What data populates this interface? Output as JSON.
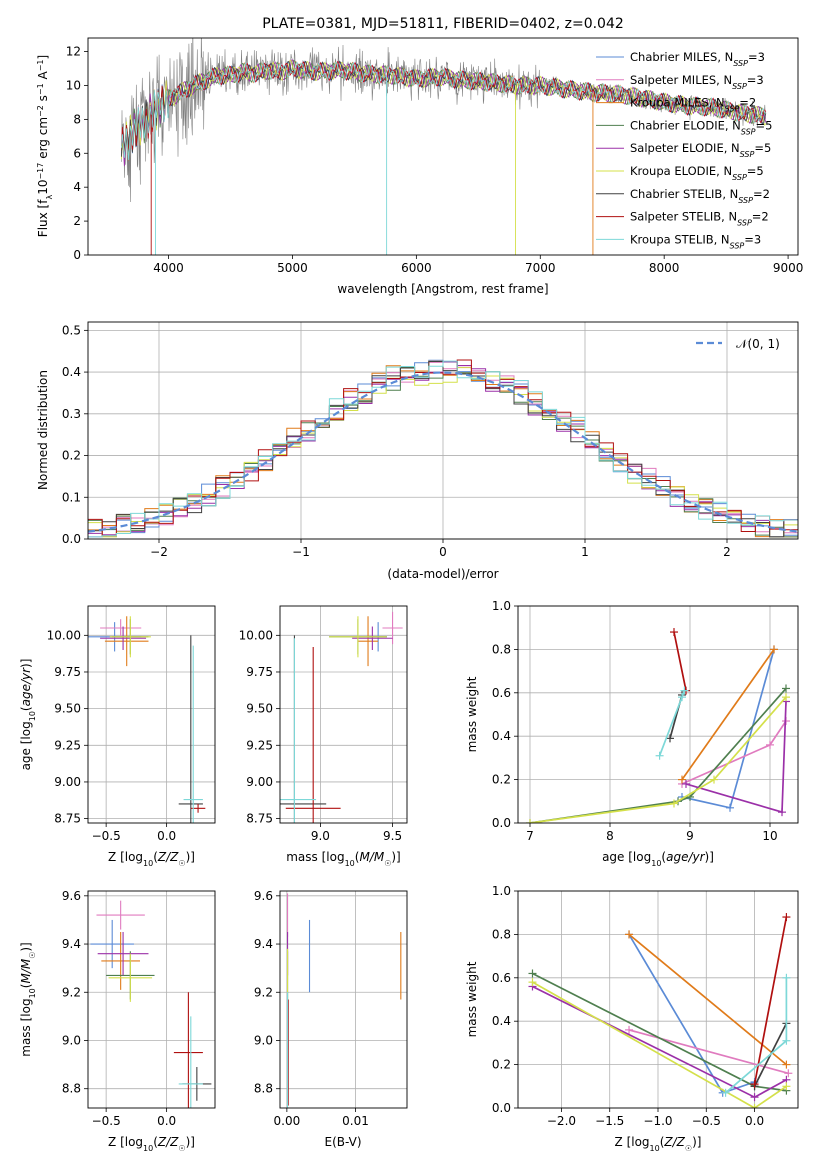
{
  "colors": {
    "chabrier_miles": "#5b8bd6",
    "salpeter_miles": "#e07bbf",
    "kroupa_miles": "#e07b1a",
    "chabrier_elodie": "#4f7f4f",
    "salpeter_elodie": "#9b30a8",
    "kroupa_elodie": "#d4e04a",
    "chabrier_stelib": "#404040",
    "salpeter_stelib": "#b01010",
    "kroupa_stelib": "#7dd8d8",
    "gaussian": "#5b8bd6",
    "grid": "#b0b0b0"
  },
  "chart_data": [
    {
      "id": "spectrum",
      "type": "line",
      "title": "PLATE=0381, MJD=51811, FIBERID=0402, z=0.042",
      "xlabel": "wavelength [Angstrom, rest frame]",
      "ylabel": "Flux [f_λ10^-17 erg cm^-2 s^-1 A^-1]",
      "xlim": [
        3350,
        9080
      ],
      "ylim": [
        0,
        12.8
      ],
      "xticks": [
        4000,
        5000,
        6000,
        7000,
        8000,
        9000
      ],
      "yticks": [
        0,
        2,
        4,
        6,
        8,
        10,
        12
      ],
      "grid": false,
      "legend_position": "right",
      "data_envelope": {
        "x": [
          3600,
          3650,
          3700,
          3800,
          3900,
          4000,
          4100,
          4200,
          4300,
          4400,
          4500,
          4600,
          4700,
          4800,
          4900,
          5000,
          5200,
          5400,
          5600,
          5800,
          6000,
          6200,
          6400,
          6600,
          6800,
          7000,
          7200,
          7400,
          7600,
          7800,
          8000,
          8200,
          8400,
          8600,
          8800
        ],
        "y": [
          5.8,
          6.6,
          7.2,
          7.8,
          8.6,
          9.2,
          9.6,
          10.0,
          10.3,
          10.6,
          10.6,
          10.8,
          10.7,
          10.9,
          10.8,
          11.0,
          10.8,
          10.9,
          10.7,
          10.6,
          10.4,
          10.5,
          10.3,
          10.2,
          10.0,
          10.0,
          9.8,
          9.6,
          9.5,
          9.3,
          9.0,
          8.8,
          8.7,
          8.4,
          8.2
        ]
      },
      "series": [
        {
          "name": "Chabrier MILES, N_SSP=3"
        },
        {
          "name": "Salpeter MILES, N_SSP=3"
        },
        {
          "name": "Kroupa MILES, N_SSP=2"
        },
        {
          "name": "Chabrier ELODIE, N_SSP=5"
        },
        {
          "name": "Salpeter ELODIE, N_SSP=5"
        },
        {
          "name": "Kroupa ELODIE, N_SSP=5"
        },
        {
          "name": "Chabrier STELIB, N_SSP=2"
        },
        {
          "name": "Salpeter STELIB, N_SSP=2"
        },
        {
          "name": "Kroupa STELIB, N_SSP=3"
        }
      ]
    },
    {
      "id": "residuals",
      "type": "line",
      "xlabel": "(data-model)/error",
      "ylabel": "Normed distribution",
      "xlim": [
        -2.5,
        2.5
      ],
      "ylim": [
        0,
        0.52
      ],
      "xticks": [
        -2,
        -1,
        0,
        1,
        2
      ],
      "yticks": [
        0.0,
        0.1,
        0.2,
        0.3,
        0.4,
        0.5
      ],
      "grid": true,
      "legend_position": "top-right",
      "legend": "𝒩(0, 1)",
      "reference_curve": "normal(0,1)"
    },
    {
      "id": "age_vs_Z",
      "type": "scatter",
      "xlabel": "Z [log10(Z/Z☉)]",
      "ylabel": "age [log10(age/yr)]",
      "xlim": [
        -0.65,
        0.4
      ],
      "ylim": [
        8.72,
        10.2
      ],
      "xticks": [
        -0.5,
        0.0
      ],
      "yticks": [
        8.75,
        9.0,
        9.25,
        9.5,
        9.75,
        10.0
      ],
      "grid": true,
      "points": [
        {
          "s": "chabrier_miles",
          "x": -0.43,
          "y": 9.99,
          "xerr": 0.22,
          "yerr": 0.1
        },
        {
          "s": "salpeter_miles",
          "x": -0.38,
          "y": 10.05,
          "xerr": 0.17,
          "yerr": 0.06
        },
        {
          "s": "kroupa_miles",
          "x": -0.33,
          "y": 9.96,
          "xerr": 0.18,
          "yerr": 0.17
        },
        {
          "s": "chabrier_elodie",
          "x": -0.3,
          "y": 9.99,
          "xerr": 0.15,
          "yerr": 0.12
        },
        {
          "s": "salpeter_elodie",
          "x": -0.36,
          "y": 9.98,
          "xerr": 0.19,
          "yerr": 0.08
        },
        {
          "s": "kroupa_elodie",
          "x": -0.3,
          "y": 9.99,
          "xerr": 0.17,
          "yerr": 0.14
        },
        {
          "s": "chabrier_stelib",
          "x": 0.2,
          "y": 8.85,
          "xerr": 0.1,
          "yerr": 1.15
        },
        {
          "s": "salpeter_stelib",
          "x": 0.26,
          "y": 8.82,
          "xerr": 0.06,
          "yerr": 0.03
        },
        {
          "s": "kroupa_stelib",
          "x": 0.22,
          "y": 8.88,
          "xerr": 0.08,
          "yerr": 1.05
        }
      ]
    },
    {
      "id": "age_vs_mass",
      "type": "scatter",
      "xlabel": "mass [log10(M/M☉)]",
      "ylabel": "",
      "xlim": [
        8.72,
        9.6
      ],
      "ylim": [
        8.72,
        10.2
      ],
      "xticks": [
        9.0,
        9.5
      ],
      "yticks": [
        8.75,
        9.0,
        9.25,
        9.5,
        9.75,
        10.0
      ],
      "grid": true,
      "points": [
        {
          "s": "chabrier_miles",
          "x": 9.4,
          "y": 9.99,
          "xerr": 0.06,
          "yerr": 0.1
        },
        {
          "s": "salpeter_miles",
          "x": 9.5,
          "y": 10.05,
          "xerr": 0.07,
          "yerr": 0.11
        },
        {
          "s": "kroupa_miles",
          "x": 9.33,
          "y": 9.96,
          "xerr": 0.07,
          "yerr": 0.17
        },
        {
          "s": "chabrier_elodie",
          "x": 9.26,
          "y": 9.99,
          "xerr": 0.2,
          "yerr": 0.12
        },
        {
          "s": "salpeter_elodie",
          "x": 9.36,
          "y": 9.98,
          "xerr": 0.14,
          "yerr": 0.08
        },
        {
          "s": "kroupa_elodie",
          "x": 9.26,
          "y": 9.99,
          "xerr": 0.2,
          "yerr": 0.14
        },
        {
          "s": "chabrier_stelib",
          "x": 8.82,
          "y": 8.85,
          "xerr": 0.22,
          "yerr": 1.15
        },
        {
          "s": "salpeter_stelib",
          "x": 8.95,
          "y": 8.82,
          "xerr": 0.19,
          "yerr": 1.1
        },
        {
          "s": "kroupa_stelib",
          "x": 8.82,
          "y": 8.88,
          "xerr": 0.15,
          "yerr": 1.1
        }
      ]
    },
    {
      "id": "mass_weight_vs_age",
      "type": "line",
      "xlabel": "age [log10(age/yr)]",
      "ylabel": "mass weight",
      "xlim": [
        6.85,
        10.35
      ],
      "ylim": [
        0,
        1.0
      ],
      "xticks": [
        7,
        8,
        9,
        10
      ],
      "yticks": [
        0.0,
        0.2,
        0.4,
        0.6,
        0.8,
        1.0
      ],
      "grid": true,
      "series": [
        {
          "s": "chabrier_miles",
          "x": [
            8.9,
            9.5,
            10.05
          ],
          "y": [
            0.12,
            0.07,
            0.8
          ]
        },
        {
          "s": "salpeter_miles",
          "x": [
            8.9,
            10.0,
            10.2
          ],
          "y": [
            0.18,
            0.36,
            0.47
          ]
        },
        {
          "s": "kroupa_miles",
          "x": [
            8.9,
            10.05
          ],
          "y": [
            0.2,
            0.8
          ]
        },
        {
          "s": "chabrier_elodie",
          "x": [
            7.0,
            8.85,
            9.0,
            10.2
          ],
          "y": [
            0.0,
            0.1,
            0.12,
            0.62
          ]
        },
        {
          "s": "salpeter_elodie",
          "x": [
            8.95,
            10.15,
            10.2
          ],
          "y": [
            0.18,
            0.05,
            0.56
          ]
        },
        {
          "s": "kroupa_elodie",
          "x": [
            7.0,
            8.8,
            9.3,
            10.2
          ],
          "y": [
            0.0,
            0.09,
            0.2,
            0.58
          ]
        },
        {
          "s": "chabrier_stelib",
          "x": [
            8.75,
            8.9
          ],
          "y": [
            0.39,
            0.59
          ]
        },
        {
          "s": "salpeter_stelib",
          "x": [
            8.8,
            8.95
          ],
          "y": [
            0.88,
            0.61
          ]
        },
        {
          "s": "kroupa_stelib",
          "x": [
            8.62,
            8.9,
            8.93
          ],
          "y": [
            0.31,
            0.58,
            0.61
          ]
        }
      ]
    },
    {
      "id": "mass_vs_Z",
      "type": "scatter",
      "xlabel": "Z [log10(Z/Z☉)]",
      "ylabel": "mass [log10(M/M☉)]",
      "xlim": [
        -0.65,
        0.4
      ],
      "ylim": [
        8.72,
        9.62
      ],
      "xticks": [
        -0.5,
        0.0
      ],
      "yticks": [
        8.8,
        9.0,
        9.2,
        9.4,
        9.6
      ],
      "grid": true,
      "points": [
        {
          "s": "chabrier_miles",
          "x": -0.45,
          "y": 9.4,
          "xerr": 0.18,
          "yerr": 0.1
        },
        {
          "s": "salpeter_miles",
          "x": -0.38,
          "y": 9.52,
          "xerr": 0.2,
          "yerr": 0.06
        },
        {
          "s": "kroupa_miles",
          "x": -0.38,
          "y": 9.33,
          "xerr": 0.16,
          "yerr": 0.12
        },
        {
          "s": "chabrier_elodie",
          "x": -0.3,
          "y": 9.27,
          "xerr": 0.2,
          "yerr": 0.1
        },
        {
          "s": "salpeter_elodie",
          "x": -0.36,
          "y": 9.36,
          "xerr": 0.21,
          "yerr": 0.09
        },
        {
          "s": "kroupa_elodie",
          "x": -0.3,
          "y": 9.26,
          "xerr": 0.18,
          "yerr": 0.1
        },
        {
          "s": "chabrier_stelib",
          "x": 0.25,
          "y": 8.82,
          "xerr": 0.12,
          "yerr": 0.07
        },
        {
          "s": "salpeter_stelib",
          "x": 0.18,
          "y": 8.95,
          "xerr": 0.12,
          "yerr": 0.25
        },
        {
          "s": "kroupa_stelib",
          "x": 0.2,
          "y": 8.82,
          "xerr": 0.1,
          "yerr": 0.28
        }
      ]
    },
    {
      "id": "mass_vs_ebv",
      "type": "scatter",
      "xlabel": "E(B-V)",
      "ylabel": "",
      "xlim": [
        -0.001,
        0.0175
      ],
      "ylim": [
        8.72,
        9.62
      ],
      "xticks": [
        0.0,
        0.01
      ],
      "yticks": [
        8.8,
        9.0,
        9.2,
        9.4,
        9.6
      ],
      "grid": true,
      "points": [
        {
          "s": "chabrier_miles",
          "x": 0.0033,
          "y": 9.35,
          "yerr": 0.15
        },
        {
          "s": "salpeter_miles",
          "x": 0.0001,
          "y": 9.52,
          "yerr": 0.09
        },
        {
          "s": "kroupa_miles",
          "x": 0.0166,
          "y": 9.31,
          "yerr": 0.14
        },
        {
          "s": "chabrier_elodie",
          "x": 0.0001,
          "y": 9.27,
          "yerr": 0.1
        },
        {
          "s": "salpeter_elodie",
          "x": 0.0001,
          "y": 9.36,
          "yerr": 0.09
        },
        {
          "s": "kroupa_elodie",
          "x": 0.0001,
          "y": 9.26,
          "yerr": 0.12
        },
        {
          "s": "chabrier_stelib",
          "x": 0.0001,
          "y": 8.85,
          "yerr": 0.06
        },
        {
          "s": "salpeter_stelib",
          "x": 0.0002,
          "y": 8.95,
          "yerr": 0.22
        },
        {
          "s": "kroupa_stelib",
          "x": 0.0001,
          "y": 8.9,
          "yerr": 0.3
        }
      ]
    },
    {
      "id": "mass_weight_vs_Z",
      "type": "line",
      "xlabel": "Z [log10(Z/Z☉)]",
      "ylabel": "mass weight",
      "xlim": [
        -2.45,
        0.45
      ],
      "ylim": [
        0,
        1.0
      ],
      "xticks": [
        -2.0,
        -1.5,
        -1.0,
        -0.5,
        0.0
      ],
      "yticks": [
        0.0,
        0.2,
        0.4,
        0.6,
        0.8,
        1.0
      ],
      "grid": true,
      "series": [
        {
          "s": "chabrier_miles",
          "x": [
            -1.3,
            -0.33,
            0.0
          ],
          "y": [
            0.8,
            0.07,
            0.12
          ]
        },
        {
          "s": "salpeter_miles",
          "x": [
            -1.3,
            0.35
          ],
          "y": [
            0.36,
            0.16
          ]
        },
        {
          "s": "kroupa_miles",
          "x": [
            -1.3,
            0.33
          ],
          "y": [
            0.8,
            0.2
          ]
        },
        {
          "s": "chabrier_elodie",
          "x": [
            -2.3,
            0.0,
            0.33
          ],
          "y": [
            0.62,
            0.1,
            0.08
          ]
        },
        {
          "s": "salpeter_elodie",
          "x": [
            -2.3,
            0.0,
            0.33
          ],
          "y": [
            0.56,
            0.05,
            0.13
          ]
        },
        {
          "s": "kroupa_elodie",
          "x": [
            -2.3,
            0.0,
            0.33
          ],
          "y": [
            0.58,
            0.0,
            0.1
          ]
        },
        {
          "s": "chabrier_stelib",
          "x": [
            0.0,
            0.33
          ],
          "y": [
            0.1,
            0.39
          ]
        },
        {
          "s": "salpeter_stelib",
          "x": [
            0.0,
            0.33
          ],
          "y": [
            0.11,
            0.88
          ]
        },
        {
          "s": "kroupa_stelib",
          "x": [
            -0.3,
            0.33,
            0.33
          ],
          "y": [
            0.07,
            0.31,
            0.6
          ]
        }
      ]
    }
  ]
}
